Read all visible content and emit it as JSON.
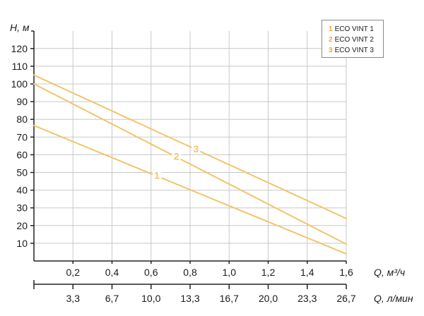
{
  "chart_data": {
    "type": "line",
    "ylabel": "H, м",
    "xlabel": "Q, м³/ч",
    "xlabel_secondary": "Q, л/мин",
    "xlim": [
      0,
      1.6
    ],
    "ylim": [
      0,
      130
    ],
    "y_ticks": [
      {
        "value": 10,
        "label": "10"
      },
      {
        "value": 20,
        "label": "20"
      },
      {
        "value": 30,
        "label": "30"
      },
      {
        "value": 40,
        "label": "40"
      },
      {
        "value": 50,
        "label": "50"
      },
      {
        "value": 60,
        "label": "60"
      },
      {
        "value": 70,
        "label": "70"
      },
      {
        "value": 80,
        "label": "80"
      },
      {
        "value": 90,
        "label": "90"
      },
      {
        "value": 100,
        "label": "100"
      },
      {
        "value": 110,
        "label": "110"
      },
      {
        "value": 120,
        "label": "120"
      }
    ],
    "x_ticks": [
      {
        "value": 0.2,
        "label": "0,2"
      },
      {
        "value": 0.4,
        "label": "0,4"
      },
      {
        "value": 0.6,
        "label": "0,6"
      },
      {
        "value": 0.8,
        "label": "0,8"
      },
      {
        "value": 1.0,
        "label": "1,0"
      },
      {
        "value": 1.2,
        "label": "1,2"
      },
      {
        "value": 1.4,
        "label": "1,4"
      },
      {
        "value": 1.6,
        "label": "1,6"
      }
    ],
    "x_ticks_secondary": [
      {
        "value": 0.2,
        "label": "3,3"
      },
      {
        "value": 0.4,
        "label": "6,7"
      },
      {
        "value": 0.6,
        "label": "10,0"
      },
      {
        "value": 0.8,
        "label": "13,3"
      },
      {
        "value": 1.0,
        "label": "16,7"
      },
      {
        "value": 1.2,
        "label": "20,0"
      },
      {
        "value": 1.4,
        "label": "23,3"
      },
      {
        "value": 1.6,
        "label": "26,7"
      }
    ],
    "grid": true,
    "legend_position": "top-right",
    "series": [
      {
        "name": "ECO VINT 1",
        "number": "1",
        "color": "#f2c46b",
        "x": [
          0,
          1.6
        ],
        "y": [
          76.5,
          4
        ],
        "label_at_x": 0.63
      },
      {
        "name": "ECO VINT 2",
        "number": "2",
        "color": "#f2c46b",
        "x": [
          0,
          1.6
        ],
        "y": [
          100,
          9.5
        ],
        "label_at_x": 0.73
      },
      {
        "name": "ECO VINT 3",
        "number": "3",
        "color": "#f2c46b",
        "x": [
          0,
          1.6
        ],
        "y": [
          105,
          24
        ],
        "label_at_x": 0.83
      }
    ]
  },
  "legend": {
    "title": "",
    "number_color": "#f0a23c"
  }
}
